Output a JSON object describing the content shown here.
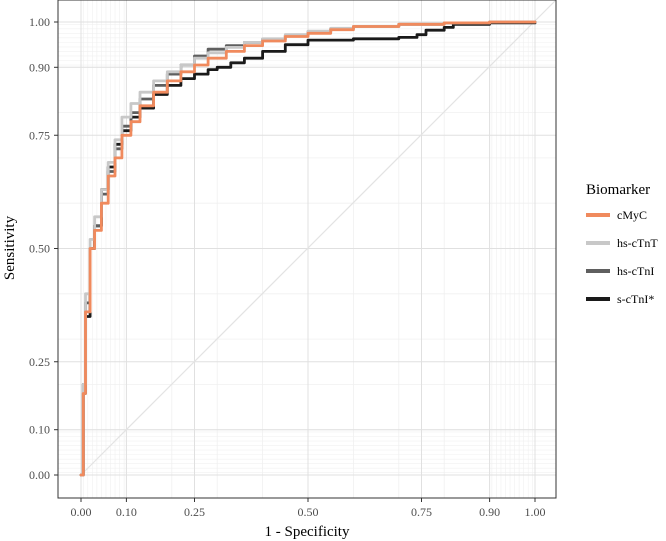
{
  "chart_data": {
    "type": "line",
    "title": "",
    "xlabel": "1 - Specificity",
    "ylabel": "Sensitivity",
    "xlim": [
      0,
      1
    ],
    "ylim": [
      0,
      1
    ],
    "x_ticks": [
      0.0,
      0.1,
      0.25,
      0.5,
      0.75,
      0.9,
      1.0
    ],
    "x_tick_labels": [
      "0.00",
      "0.10",
      "0.25",
      "0.50",
      "0.75",
      "0.90",
      "1.00"
    ],
    "y_ticks": [
      0.0,
      0.1,
      0.25,
      0.5,
      0.75,
      0.9,
      1.0
    ],
    "y_tick_labels": [
      "0.00",
      "0.10",
      "0.25",
      "0.50",
      "0.75",
      "0.90",
      "1.00"
    ],
    "grid": true,
    "reference_diagonal": true,
    "legend": {
      "title": "Biomarker",
      "position": "right",
      "entries": [
        "cMyC",
        "hs-cTnT",
        "hs-cTnI",
        "s-cTnI*"
      ]
    },
    "series": [
      {
        "name": "s-cTnI*",
        "color": "#1a1a1a",
        "x": [
          0.0,
          0.005,
          0.01,
          0.02,
          0.03,
          0.045,
          0.06,
          0.075,
          0.09,
          0.11,
          0.13,
          0.16,
          0.19,
          0.22,
          0.25,
          0.28,
          0.3,
          0.33,
          0.36,
          0.4,
          0.45,
          0.5,
          0.6,
          0.7,
          0.74,
          0.76,
          0.8,
          0.82,
          0.9,
          1.0
        ],
        "y": [
          0.0,
          0.2,
          0.35,
          0.5,
          0.55,
          0.63,
          0.68,
          0.73,
          0.76,
          0.79,
          0.81,
          0.84,
          0.86,
          0.875,
          0.885,
          0.895,
          0.9,
          0.91,
          0.92,
          0.935,
          0.95,
          0.96,
          0.963,
          0.966,
          0.972,
          0.982,
          0.988,
          0.995,
          0.998,
          1.0
        ]
      },
      {
        "name": "hs-cTnI",
        "color": "#5f5f5f",
        "x": [
          0.0,
          0.005,
          0.01,
          0.02,
          0.03,
          0.045,
          0.06,
          0.075,
          0.09,
          0.11,
          0.13,
          0.16,
          0.19,
          0.22,
          0.25,
          0.28,
          0.32,
          0.36,
          0.4,
          0.45,
          0.5,
          0.55,
          0.6,
          0.7,
          0.8,
          0.9,
          1.0
        ],
        "y": [
          0.0,
          0.18,
          0.38,
          0.5,
          0.55,
          0.62,
          0.67,
          0.72,
          0.77,
          0.8,
          0.83,
          0.86,
          0.885,
          0.905,
          0.925,
          0.94,
          0.948,
          0.955,
          0.962,
          0.97,
          0.978,
          0.985,
          0.99,
          0.995,
          0.998,
          1.0,
          1.0
        ]
      },
      {
        "name": "hs-cTnT",
        "color": "#c8c8c8",
        "x": [
          0.0,
          0.005,
          0.01,
          0.02,
          0.03,
          0.045,
          0.06,
          0.075,
          0.09,
          0.11,
          0.13,
          0.16,
          0.19,
          0.22,
          0.25,
          0.28,
          0.32,
          0.36,
          0.4,
          0.45,
          0.5,
          0.55,
          0.6,
          0.7,
          0.8,
          0.9,
          1.0
        ],
        "y": [
          0.0,
          0.2,
          0.4,
          0.52,
          0.57,
          0.63,
          0.69,
          0.74,
          0.79,
          0.82,
          0.845,
          0.87,
          0.89,
          0.905,
          0.92,
          0.932,
          0.944,
          0.955,
          0.963,
          0.972,
          0.98,
          0.986,
          0.99,
          0.995,
          0.998,
          1.0,
          1.0
        ]
      },
      {
        "name": "cMyC",
        "color": "#f08a5d",
        "x": [
          0.0,
          0.005,
          0.01,
          0.02,
          0.03,
          0.045,
          0.06,
          0.075,
          0.09,
          0.11,
          0.13,
          0.16,
          0.19,
          0.22,
          0.25,
          0.28,
          0.32,
          0.36,
          0.4,
          0.45,
          0.5,
          0.55,
          0.6,
          0.7,
          0.8,
          0.9,
          1.0
        ],
        "y": [
          0.0,
          0.18,
          0.36,
          0.5,
          0.54,
          0.6,
          0.66,
          0.7,
          0.75,
          0.78,
          0.815,
          0.845,
          0.87,
          0.89,
          0.905,
          0.92,
          0.935,
          0.948,
          0.958,
          0.968,
          0.975,
          0.983,
          0.99,
          0.995,
          0.998,
          1.0,
          1.0
        ]
      }
    ]
  }
}
